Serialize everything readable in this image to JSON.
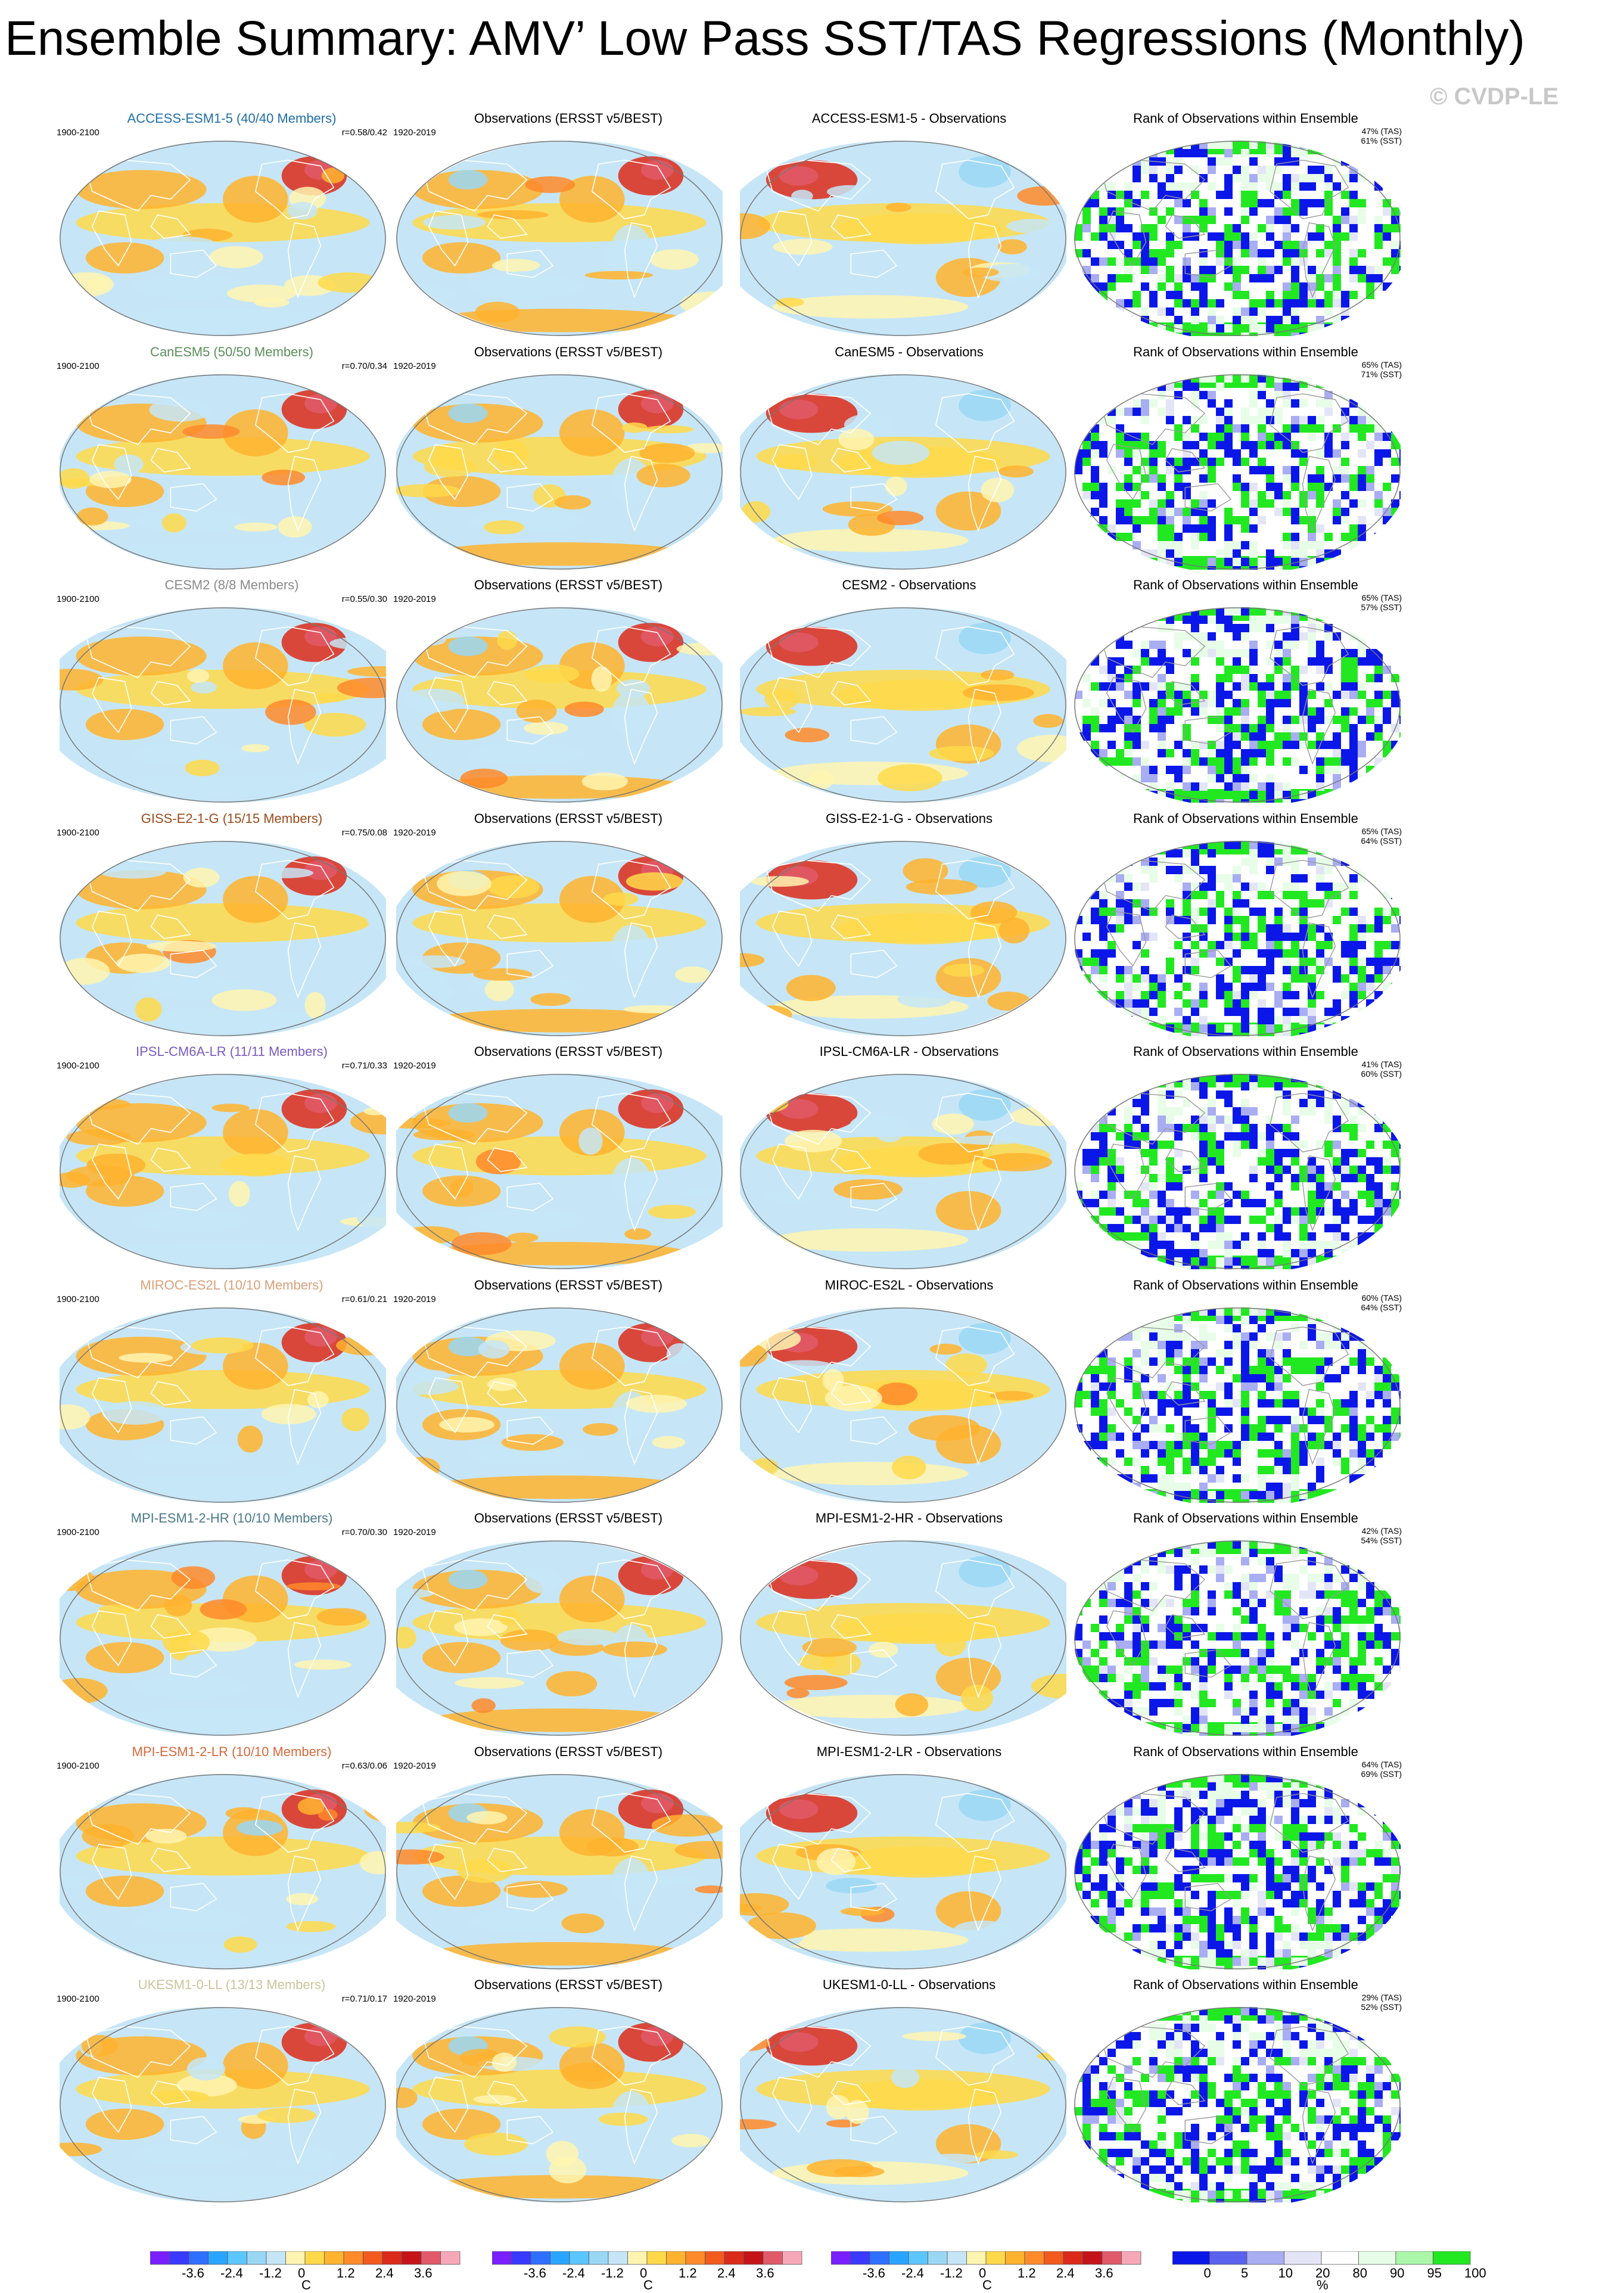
{
  "title": "Ensemble Summary: AMV’ Low Pass SST/TAS Regressions (Monthly)",
  "watermark": "© CVDP-LE",
  "obs_title": "Observations (ERSST v5/BEST)",
  "obs_period": "1920-2019",
  "model_period": "1900-2100",
  "rank_title": "Rank of Observations within Ensemble",
  "rows": [
    {
      "model_label": "ACCESS-ESM1-5 (40/40 Members)",
      "model_color": "#1f6fa8",
      "corr": "r=0.58/0.42",
      "diff_title": "ACCESS-ESM1-5 - Observations",
      "rank_tas": "47% (TAS)",
      "rank_sst": "61% (SST)"
    },
    {
      "model_label": "CanESM5 (50/50 Members)",
      "model_color": "#5b8f5b",
      "corr": "r=0.70/0.34",
      "diff_title": "CanESM5 - Observations",
      "rank_tas": "65% (TAS)",
      "rank_sst": "71% (SST)"
    },
    {
      "model_label": "CESM2 (8/8 Members)",
      "model_color": "#8a8a8a",
      "corr": "r=0.55/0.30",
      "diff_title": "CESM2 - Observations",
      "rank_tas": "65% (TAS)",
      "rank_sst": "57% (SST)"
    },
    {
      "model_label": "GISS-E2-1-G (15/15 Members)",
      "model_color": "#9a4a1a",
      "corr": "r=0.75/0.08",
      "diff_title": "GISS-E2-1-G - Observations",
      "rank_tas": "65% (TAS)",
      "rank_sst": "64% (SST)"
    },
    {
      "model_label": "IPSL-CM6A-LR (11/11 Members)",
      "model_color": "#7a5cc0",
      "corr": "r=0.71/0.33",
      "diff_title": "IPSL-CM6A-LR - Observations",
      "rank_tas": "41% (TAS)",
      "rank_sst": "60% (SST)"
    },
    {
      "model_label": "MIROC-ES2L (10/10 Members)",
      "model_color": "#d9a07a",
      "corr": "r=0.61/0.21",
      "diff_title": "MIROC-ES2L - Observations",
      "rank_tas": "60% (TAS)",
      "rank_sst": "64% (SST)"
    },
    {
      "model_label": "MPI-ESM1-2-HR (10/10 Members)",
      "model_color": "#4a7a8a",
      "corr": "r=0.70/0.30",
      "diff_title": "MPI-ESM1-2-HR - Observations",
      "rank_tas": "42% (TAS)",
      "rank_sst": "54% (SST)"
    },
    {
      "model_label": "MPI-ESM1-2-LR (10/10 Members)",
      "model_color": "#d9683a",
      "corr": "r=0.63/0.06",
      "diff_title": "MPI-ESM1-2-LR - Observations",
      "rank_tas": "64% (TAS)",
      "rank_sst": "69% (SST)"
    },
    {
      "model_label": "UKESM1-0-LL (13/13 Members)",
      "model_color": "#c9c59a",
      "corr": "r=0.71/0.17",
      "diff_title": "UKESM1-0-LL - Observations",
      "rank_tas": "29% (TAS)",
      "rank_sst": "52% (SST)"
    }
  ],
  "colorbars": {
    "temp_ticks": [
      "-3.6",
      "-2.4",
      "-1.2",
      "0",
      "1.2",
      "2.4",
      "3.6"
    ],
    "temp_unit": "C",
    "temp_colors": [
      "#7a1fff",
      "#3a3aff",
      "#2e6fff",
      "#2aa5ff",
      "#5cc6ff",
      "#9ad7f5",
      "#c6e6f7",
      "#fff5b0",
      "#ffd94a",
      "#ffb32e",
      "#ff8a2a",
      "#f25a1e",
      "#dc2a1a",
      "#c4141a",
      "#e05a6a",
      "#f7a8b8"
    ],
    "rank_ticks": [
      "0",
      "5",
      "10",
      "20",
      "80",
      "90",
      "95",
      "100"
    ],
    "rank_unit": "%",
    "rank_colors": [
      "#0b17e8",
      "#5a62ee",
      "#a9adf2",
      "#e3e5f7",
      "#ffffff",
      "#e8fde8",
      "#aaf7aa",
      "#22e822"
    ]
  }
}
